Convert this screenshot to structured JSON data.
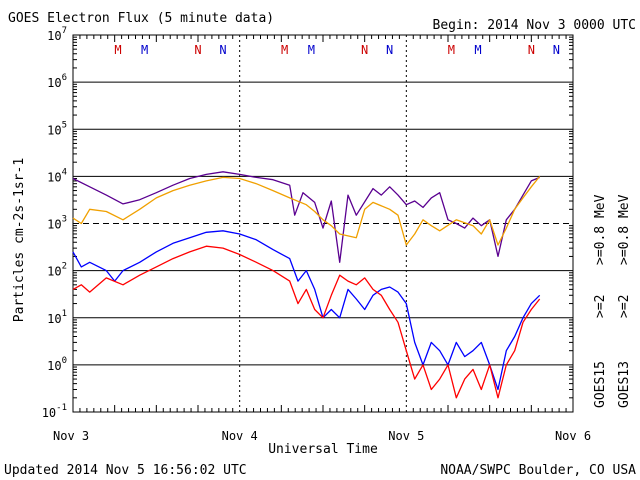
{
  "header": {
    "title": "GOES Electron Flux (5 minute data)",
    "begin": "Begin: 2014 Nov 3 0000 UTC"
  },
  "footer": {
    "updated": "Updated 2014 Nov  5 16:56:02 UTC",
    "credit": "NOAA/SWPC Boulder, CO USA"
  },
  "chart_data": {
    "type": "line",
    "title": "GOES Electron Flux (5 minute data)",
    "xlabel": "Universal Time",
    "ylabel": "Particles cm-2s-1sr-1",
    "yscale": "log",
    "ylim": [
      0.1,
      10000000
    ],
    "xlim": [
      0,
      3
    ],
    "x_ticks": [
      {
        "x": 0,
        "label": "Nov 3"
      },
      {
        "x": 1,
        "label": "Nov 4"
      },
      {
        "x": 2,
        "label": "Nov 5"
      },
      {
        "x": 3,
        "label": "Nov 6"
      }
    ],
    "y_ticks": [
      {
        "exp": "-1",
        "value": 0.1
      },
      {
        "exp": "0",
        "value": 1
      },
      {
        "exp": "1",
        "value": 10
      },
      {
        "exp": "2",
        "value": 100
      },
      {
        "exp": "3",
        "value": 1000
      },
      {
        "exp": "4",
        "value": 10000
      },
      {
        "exp": "5",
        "value": 100000
      },
      {
        "exp": "6",
        "value": 1000000
      },
      {
        "exp": "7",
        "value": 10000000
      }
    ],
    "markers": [
      {
        "x": 0.27,
        "label": "M",
        "color": "#cc0000"
      },
      {
        "x": 0.43,
        "label": "M",
        "color": "#0000cc"
      },
      {
        "x": 0.75,
        "label": "N",
        "color": "#cc0000"
      },
      {
        "x": 0.9,
        "label": "N",
        "color": "#0000cc"
      },
      {
        "x": 1.27,
        "label": "M",
        "color": "#cc0000"
      },
      {
        "x": 1.43,
        "label": "M",
        "color": "#0000cc"
      },
      {
        "x": 1.75,
        "label": "N",
        "color": "#cc0000"
      },
      {
        "x": 1.9,
        "label": "N",
        "color": "#0000cc"
      },
      {
        "x": 2.27,
        "label": "M",
        "color": "#cc0000"
      },
      {
        "x": 2.43,
        "label": "M",
        "color": "#0000cc"
      },
      {
        "x": 2.75,
        "label": "N",
        "color": "#cc0000"
      },
      {
        "x": 2.9,
        "label": "N",
        "color": "#0000cc"
      }
    ],
    "threshold_value": 1000,
    "legend_right": {
      "goes15": "GOES15",
      "goes13": "GOES13",
      "ge2_15": ">=2",
      "ge2_13": ">=2",
      "ge08_15": ">=0.8 MeV",
      "ge08_13": ">=0.8 MeV"
    },
    "series": [
      {
        "name": "GOES15 >=0.8 MeV",
        "color": "#5a0090",
        "points": [
          [
            0,
            9000
          ],
          [
            0.1,
            6000
          ],
          [
            0.2,
            4000
          ],
          [
            0.3,
            2600
          ],
          [
            0.4,
            3200
          ],
          [
            0.5,
            4500
          ],
          [
            0.6,
            6500
          ],
          [
            0.7,
            9000
          ],
          [
            0.8,
            11000
          ],
          [
            0.9,
            12500
          ],
          [
            1.0,
            11000
          ],
          [
            1.1,
            9500
          ],
          [
            1.2,
            8500
          ],
          [
            1.3,
            6500
          ],
          [
            1.33,
            1500
          ],
          [
            1.38,
            4500
          ],
          [
            1.45,
            2800
          ],
          [
            1.5,
            800
          ],
          [
            1.55,
            3000
          ],
          [
            1.6,
            150
          ],
          [
            1.65,
            4000
          ],
          [
            1.7,
            1500
          ],
          [
            1.8,
            5500
          ],
          [
            1.85,
            4000
          ],
          [
            1.9,
            6000
          ],
          [
            1.95,
            4000
          ],
          [
            2.0,
            2500
          ],
          [
            2.05,
            3000
          ],
          [
            2.1,
            2200
          ],
          [
            2.15,
            3500
          ],
          [
            2.2,
            4500
          ],
          [
            2.25,
            1200
          ],
          [
            2.3,
            1000
          ],
          [
            2.35,
            800
          ],
          [
            2.4,
            1300
          ],
          [
            2.45,
            900
          ],
          [
            2.5,
            1200
          ],
          [
            2.55,
            200
          ],
          [
            2.6,
            1200
          ],
          [
            2.65,
            2000
          ],
          [
            2.7,
            4000
          ],
          [
            2.75,
            8000
          ],
          [
            2.8,
            9500
          ]
        ]
      },
      {
        "name": "GOES13 >=0.8 MeV",
        "color": "#f0a000",
        "points": [
          [
            0,
            1300
          ],
          [
            0.05,
            1000
          ],
          [
            0.1,
            2000
          ],
          [
            0.2,
            1800
          ],
          [
            0.3,
            1200
          ],
          [
            0.4,
            2000
          ],
          [
            0.5,
            3500
          ],
          [
            0.6,
            5000
          ],
          [
            0.7,
            6500
          ],
          [
            0.8,
            8000
          ],
          [
            0.9,
            9500
          ],
          [
            1.0,
            9000
          ],
          [
            1.1,
            7000
          ],
          [
            1.2,
            5000
          ],
          [
            1.3,
            3500
          ],
          [
            1.4,
            2500
          ],
          [
            1.45,
            1800
          ],
          [
            1.5,
            1200
          ],
          [
            1.55,
            900
          ],
          [
            1.6,
            600
          ],
          [
            1.7,
            500
          ],
          [
            1.75,
            2000
          ],
          [
            1.8,
            2800
          ],
          [
            1.9,
            2000
          ],
          [
            1.95,
            1500
          ],
          [
            2.0,
            350
          ],
          [
            2.05,
            600
          ],
          [
            2.1,
            1200
          ],
          [
            2.15,
            900
          ],
          [
            2.2,
            700
          ],
          [
            2.3,
            1200
          ],
          [
            2.4,
            900
          ],
          [
            2.45,
            600
          ],
          [
            2.5,
            1200
          ],
          [
            2.55,
            350
          ],
          [
            2.6,
            800
          ],
          [
            2.65,
            2000
          ],
          [
            2.7,
            3500
          ],
          [
            2.75,
            6000
          ],
          [
            2.8,
            10000
          ]
        ]
      },
      {
        "name": "GOES15 >=2",
        "color": "#0000ff",
        "points": [
          [
            0,
            250
          ],
          [
            0.05,
            120
          ],
          [
            0.1,
            150
          ],
          [
            0.2,
            100
          ],
          [
            0.25,
            60
          ],
          [
            0.3,
            100
          ],
          [
            0.4,
            150
          ],
          [
            0.5,
            250
          ],
          [
            0.6,
            380
          ],
          [
            0.7,
            500
          ],
          [
            0.8,
            650
          ],
          [
            0.9,
            700
          ],
          [
            1.0,
            600
          ],
          [
            1.1,
            450
          ],
          [
            1.2,
            280
          ],
          [
            1.3,
            180
          ],
          [
            1.35,
            60
          ],
          [
            1.4,
            100
          ],
          [
            1.45,
            40
          ],
          [
            1.5,
            10
          ],
          [
            1.55,
            15
          ],
          [
            1.6,
            10
          ],
          [
            1.65,
            40
          ],
          [
            1.7,
            25
          ],
          [
            1.75,
            15
          ],
          [
            1.8,
            30
          ],
          [
            1.85,
            40
          ],
          [
            1.9,
            45
          ],
          [
            1.95,
            35
          ],
          [
            2.0,
            20
          ],
          [
            2.05,
            3
          ],
          [
            2.1,
            1
          ],
          [
            2.15,
            3
          ],
          [
            2.2,
            2
          ],
          [
            2.25,
            1
          ],
          [
            2.3,
            3
          ],
          [
            2.35,
            1.5
          ],
          [
            2.4,
            2
          ],
          [
            2.45,
            3
          ],
          [
            2.5,
            1
          ],
          [
            2.55,
            0.3
          ],
          [
            2.6,
            2
          ],
          [
            2.65,
            4
          ],
          [
            2.7,
            10
          ],
          [
            2.75,
            20
          ],
          [
            2.8,
            30
          ]
        ]
      },
      {
        "name": "GOES13 >=2",
        "color": "#ff0000",
        "points": [
          [
            0,
            40
          ],
          [
            0.05,
            50
          ],
          [
            0.1,
            35
          ],
          [
            0.2,
            70
          ],
          [
            0.3,
            50
          ],
          [
            0.4,
            80
          ],
          [
            0.5,
            120
          ],
          [
            0.6,
            180
          ],
          [
            0.7,
            250
          ],
          [
            0.8,
            330
          ],
          [
            0.9,
            300
          ],
          [
            1.0,
            220
          ],
          [
            1.1,
            150
          ],
          [
            1.2,
            100
          ],
          [
            1.3,
            60
          ],
          [
            1.35,
            20
          ],
          [
            1.4,
            40
          ],
          [
            1.45,
            15
          ],
          [
            1.5,
            10
          ],
          [
            1.55,
            30
          ],
          [
            1.6,
            80
          ],
          [
            1.65,
            60
          ],
          [
            1.7,
            50
          ],
          [
            1.75,
            70
          ],
          [
            1.8,
            40
          ],
          [
            1.85,
            30
          ],
          [
            1.9,
            15
          ],
          [
            1.95,
            8
          ],
          [
            2.0,
            2
          ],
          [
            2.05,
            0.5
          ],
          [
            2.1,
            1
          ],
          [
            2.15,
            0.3
          ],
          [
            2.2,
            0.5
          ],
          [
            2.25,
            1
          ],
          [
            2.3,
            0.2
          ],
          [
            2.35,
            0.5
          ],
          [
            2.4,
            0.8
          ],
          [
            2.45,
            0.3
          ],
          [
            2.5,
            1
          ],
          [
            2.55,
            0.2
          ],
          [
            2.6,
            1
          ],
          [
            2.65,
            2
          ],
          [
            2.7,
            8
          ],
          [
            2.75,
            15
          ],
          [
            2.8,
            25
          ]
        ]
      }
    ]
  }
}
